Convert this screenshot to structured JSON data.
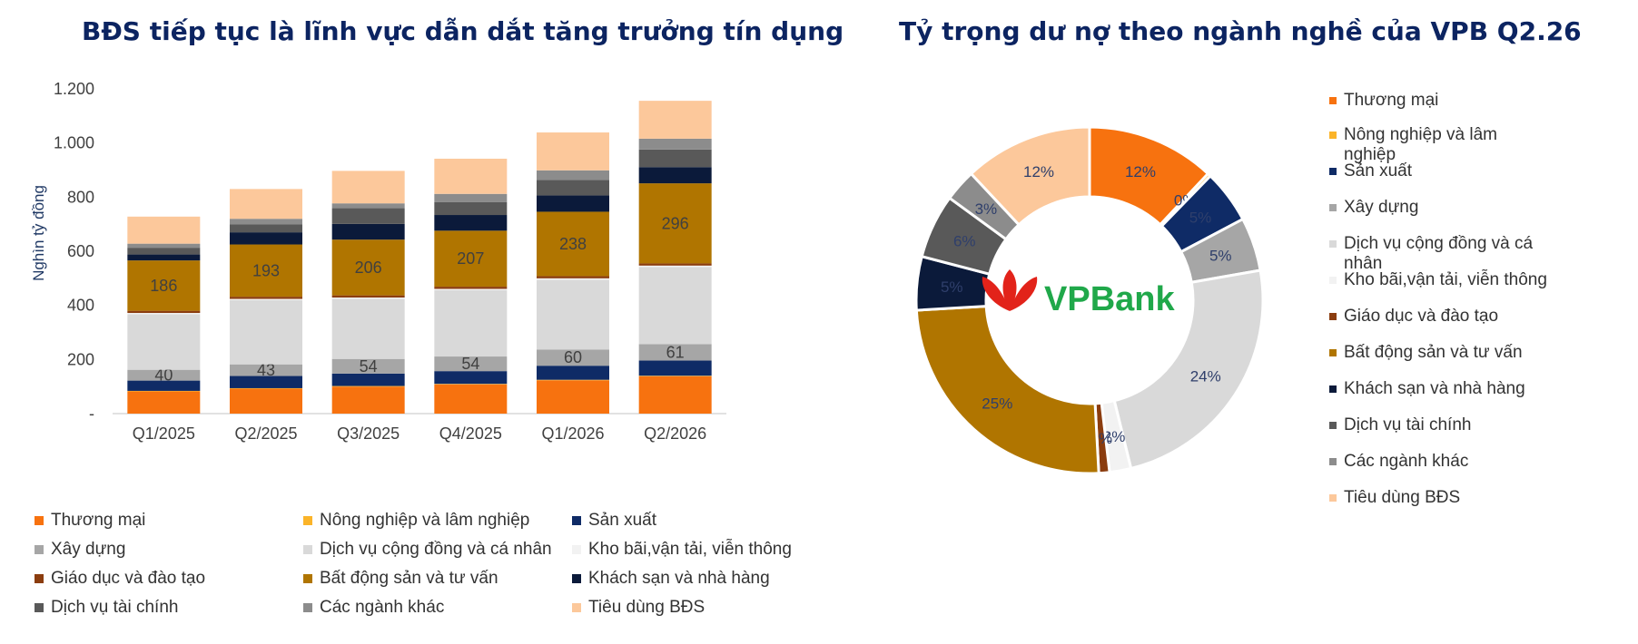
{
  "left_title": "BĐS tiếp tục là lĩnh vực dẫn dắt tăng trưởng tín dụng",
  "right_title": "Tỷ trọng dư nợ theo ngành nghề của VPB Q2.26",
  "logo_text": "VPBank",
  "colors": {
    "Thương mại": "#f7720f",
    "Nông nghiệp và lâm nghiệp": "#fbb429",
    "Sản xuất": "#0f2b66",
    "Xây dựng": "#a6a6a6",
    "Dịch vụ cộng đồng và cá nhân": "#d9d9d9",
    "Kho bãi,vận tải, viễn thông": "#f2f2f2",
    "Giáo dục và đào tạo": "#8b3d0f",
    "Bất động sản và tư vấn": "#b07500",
    "Khách sạn và nhà hàng": "#0b1a3a",
    "Dịch vụ tài chính": "#595959",
    "Các ngành khác": "#8c8c8c",
    "Tiêu dùng BĐS": "#fcc89b"
  },
  "chart_data": [
    {
      "type": "bar",
      "stacked": true,
      "title": "BĐS tiếp tục là lĩnh vực dẫn dắt tăng trưởng tín dụng",
      "ylabel": "Nghìn tỷ đồng",
      "ylim": [
        0,
        1200
      ],
      "y_ticks": [
        "-",
        "200",
        "400",
        "600",
        "800",
        "1.000",
        "1.200"
      ],
      "y_tick_values": [
        0,
        200,
        400,
        600,
        800,
        1000,
        1200
      ],
      "categories": [
        "Q1/2025",
        "Q2/2025",
        "Q3/2025",
        "Q4/2025",
        "Q1/2026",
        "Q2/2026"
      ],
      "legend_position": "bottom",
      "series": [
        {
          "name": "Thương mại",
          "values": [
            82,
            92,
            100,
            108,
            123,
            138
          ]
        },
        {
          "name": "Nông nghiệp và lâm nghiệp",
          "values": [
            2,
            2,
            2,
            2,
            2,
            2
          ]
        },
        {
          "name": "Sản xuất",
          "values": [
            38,
            45,
            46,
            47,
            52,
            56
          ]
        },
        {
          "name": "Xây dựng",
          "values": [
            40,
            43,
            54,
            54,
            60,
            61
          ]
        },
        {
          "name": "Dịch vụ cộng đồng và cá nhân",
          "values": [
            205,
            237,
            222,
            245,
            258,
            285
          ]
        },
        {
          "name": "Kho bãi,vận tải, viễn thông",
          "values": [
            5,
            5,
            5,
            5,
            5,
            5
          ]
        },
        {
          "name": "Giáo dục và đào tạo",
          "values": [
            8,
            8,
            8,
            8,
            8,
            8
          ]
        },
        {
          "name": "Bất động sản và tư vấn",
          "values": [
            186,
            193,
            206,
            207,
            238,
            296
          ]
        },
        {
          "name": "Khách sạn và nhà hàng",
          "values": [
            22,
            45,
            58,
            58,
            60,
            60
          ]
        },
        {
          "name": "Dịch vụ tài chính",
          "values": [
            25,
            30,
            58,
            48,
            58,
            65
          ]
        },
        {
          "name": "Các ngành khác",
          "values": [
            15,
            20,
            18,
            30,
            35,
            40
          ]
        },
        {
          "name": "Tiêu dùng BĐS",
          "values": [
            100,
            110,
            120,
            130,
            140,
            140
          ]
        }
      ],
      "data_labels": {
        "Xây dựng": [
          "40",
          "43",
          "54",
          "54",
          "60",
          "61"
        ],
        "Bất động sản và tư vấn": [
          "186",
          "193",
          "206",
          "207",
          "238",
          "296"
        ]
      }
    },
    {
      "type": "pie",
      "donut": true,
      "title": "Tỷ trọng dư nợ theo ngành nghề của VPB Q2.26",
      "legend_position": "right",
      "slices": [
        {
          "name": "Thương mại",
          "value": 12,
          "label": "12%"
        },
        {
          "name": "Nông nghiệp và lâm nghiệp",
          "value": 0.3,
          "label": "0%"
        },
        {
          "name": "Sản xuất",
          "value": 5,
          "label": "5%"
        },
        {
          "name": "Xây dựng",
          "value": 5,
          "label": "5%"
        },
        {
          "name": "Dịch vụ cộng đồng và cá nhân",
          "value": 24,
          "label": "24%"
        },
        {
          "name": "Kho bãi,vận tải, viễn thông",
          "value": 2,
          "label": "2%"
        },
        {
          "name": "Giáo dục và đào tạo",
          "value": 1,
          "label": "1%"
        },
        {
          "name": "Bất động sản và tư vấn",
          "value": 25,
          "label": "25%"
        },
        {
          "name": "Khách sạn và nhà hàng",
          "value": 5,
          "label": "5%"
        },
        {
          "name": "Dịch vụ tài chính",
          "value": 6,
          "label": "6%"
        },
        {
          "name": "Các ngành khác",
          "value": 3,
          "label": "3%"
        },
        {
          "name": "Tiêu dùng BĐS",
          "value": 12,
          "label": "12%"
        }
      ],
      "legend_labels": [
        "Thương mại",
        "Nông nghiệp và lâm nghiệp",
        "Sản xuất",
        "Xây dựng",
        "Dịch vụ cộng đồng và cá nhân",
        "Kho bãi,vận tải, viễn thông",
        "Giáo dục và đào tạo",
        "Bất động sản và tư vấn",
        "Khách sạn và nhà hàng",
        "Dịch vụ tài chính",
        "Các ngành khác",
        "Tiêu dùng BĐS"
      ]
    }
  ]
}
